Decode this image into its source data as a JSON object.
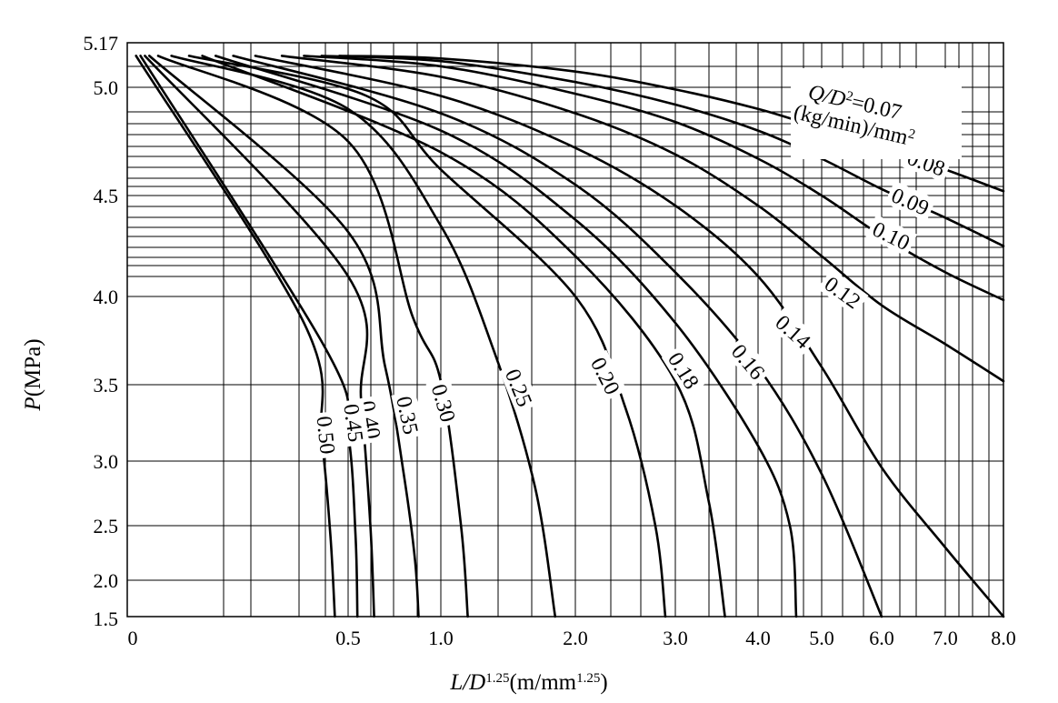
{
  "chart_data": {
    "type": "line",
    "xlabel": {
      "italic": "L/D",
      "sup": "1.25",
      "unit": "(m/mm",
      "unit_sup": "1.25",
      "close": ")"
    },
    "ylabel": {
      "italic": "P",
      "unit": "(MPa)"
    },
    "x_ticks": [
      {
        "label": "0",
        "value": 0
      },
      {
        "label": "0.5",
        "value": 0.5
      },
      {
        "label": "1.0",
        "value": 1.0
      },
      {
        "label": "2.0",
        "value": 2.0
      },
      {
        "label": "3.0",
        "value": 3.0
      },
      {
        "label": "4.0",
        "value": 4.0
      },
      {
        "label": "5.0",
        "value": 5.0
      },
      {
        "label": "6.0",
        "value": 6.0
      },
      {
        "label": "7.0",
        "value": 7.0
      },
      {
        "label": "8.0",
        "value": 8.0
      }
    ],
    "y_ticks": [
      {
        "label": "5.17",
        "value": 5.17
      },
      {
        "label": "5.0",
        "value": 5.0
      },
      {
        "label": "4.5",
        "value": 4.5
      },
      {
        "label": "4.0",
        "value": 4.0
      },
      {
        "label": "3.5",
        "value": 3.5
      },
      {
        "label": "3.0",
        "value": 3.0
      },
      {
        "label": "2.5",
        "value": 2.5
      },
      {
        "label": "2.0",
        "value": 2.0
      },
      {
        "label": "1.5",
        "value": 1.5
      }
    ],
    "xlim": [
      0,
      8.0
    ],
    "ylim": [
      1.5,
      5.17
    ],
    "grid": true,
    "legend_note": {
      "q_italic": "Q/D",
      "q_sup": "2",
      "q_eq": "=0.07",
      "unit": "(kg/min)/mm",
      "unit_sup": "2"
    },
    "series": [
      {
        "name": "0.07",
        "points": [
          [
            0.48,
            5.12
          ],
          [
            1.0,
            5.11
          ],
          [
            2.0,
            5.06
          ],
          [
            3.0,
            4.99
          ],
          [
            4.0,
            4.9
          ],
          [
            5.0,
            4.81
          ],
          [
            6.0,
            4.72
          ],
          [
            7.0,
            4.62
          ],
          [
            8.0,
            4.52
          ]
        ]
      },
      {
        "name": "0.08",
        "points": [
          [
            0.44,
            5.12
          ],
          [
            1.0,
            5.1
          ],
          [
            2.0,
            5.02
          ],
          [
            3.0,
            4.92
          ],
          [
            4.0,
            4.8
          ],
          [
            5.0,
            4.67
          ],
          [
            6.0,
            4.53
          ],
          [
            7.0,
            4.39
          ],
          [
            8.0,
            4.25
          ]
        ]
      },
      {
        "name": "0.09",
        "points": [
          [
            0.4,
            5.12
          ],
          [
            1.0,
            5.08
          ],
          [
            2.0,
            4.97
          ],
          [
            3.0,
            4.84
          ],
          [
            4.0,
            4.67
          ],
          [
            5.0,
            4.5
          ],
          [
            6.0,
            4.3
          ],
          [
            7.0,
            4.12
          ],
          [
            8.0,
            3.98
          ]
        ]
      },
      {
        "name": "0.10",
        "points": [
          [
            0.35,
            5.12
          ],
          [
            1.0,
            5.04
          ],
          [
            2.0,
            4.88
          ],
          [
            3.0,
            4.69
          ],
          [
            4.0,
            4.45
          ],
          [
            5.0,
            4.2
          ],
          [
            6.0,
            3.95
          ],
          [
            7.0,
            3.73
          ],
          [
            8.0,
            3.52
          ]
        ]
      },
      {
        "name": "0.12",
        "points": [
          [
            0.29,
            5.12
          ],
          [
            1.0,
            4.96
          ],
          [
            2.0,
            4.72
          ],
          [
            3.0,
            4.45
          ],
          [
            4.0,
            4.1
          ],
          [
            5.0,
            3.6
          ],
          [
            6.0,
            2.95
          ],
          [
            7.0,
            2.3
          ],
          [
            8.0,
            1.5
          ]
        ]
      },
      {
        "name": "0.14",
        "points": [
          [
            0.24,
            5.12
          ],
          [
            1.0,
            4.88
          ],
          [
            2.0,
            4.55
          ],
          [
            3.0,
            4.12
          ],
          [
            4.0,
            3.6
          ],
          [
            5.0,
            2.9
          ],
          [
            6.0,
            1.5
          ]
        ]
      },
      {
        "name": "0.16",
        "points": [
          [
            0.2,
            5.12
          ],
          [
            1.0,
            4.8
          ],
          [
            2.0,
            4.38
          ],
          [
            3.0,
            3.85
          ],
          [
            4.0,
            3.1
          ],
          [
            4.5,
            2.5
          ],
          [
            4.6,
            1.5
          ]
        ]
      },
      {
        "name": "0.18",
        "points": [
          [
            0.17,
            5.12
          ],
          [
            1.0,
            4.7
          ],
          [
            2.0,
            4.2
          ],
          [
            3.0,
            3.52
          ],
          [
            3.4,
            2.7
          ],
          [
            3.6,
            1.5
          ]
        ]
      },
      {
        "name": "0.20",
        "points": [
          [
            0.14,
            5.12
          ],
          [
            0.6,
            4.96
          ],
          [
            1.0,
            4.62
          ],
          [
            2.0,
            4.0
          ],
          [
            2.5,
            3.35
          ],
          [
            2.8,
            2.5
          ],
          [
            2.9,
            1.5
          ]
        ]
      },
      {
        "name": "0.25",
        "points": [
          [
            0.1,
            5.12
          ],
          [
            0.5,
            4.9
          ],
          [
            1.0,
            4.35
          ],
          [
            1.4,
            3.68
          ],
          [
            1.7,
            2.8
          ],
          [
            1.85,
            1.5
          ]
        ]
      },
      {
        "name": "0.30",
        "points": [
          [
            0.07,
            5.12
          ],
          [
            0.5,
            4.75
          ],
          [
            0.85,
            3.88
          ],
          [
            1.0,
            3.52
          ],
          [
            1.15,
            2.5
          ],
          [
            1.2,
            1.5
          ]
        ]
      },
      {
        "name": "0.35",
        "points": [
          [
            0.05,
            5.12
          ],
          [
            0.5,
            4.32
          ],
          [
            0.7,
            3.6
          ],
          [
            0.8,
            2.9
          ],
          [
            0.86,
            2.2
          ],
          [
            0.88,
            1.5
          ]
        ]
      },
      {
        "name": "0.40",
        "points": [
          [
            0.04,
            5.12
          ],
          [
            0.5,
            4.1
          ],
          [
            0.57,
            3.4
          ],
          [
            0.62,
            2.5
          ],
          [
            0.64,
            1.5
          ]
        ]
      },
      {
        "name": "0.45",
        "points": [
          [
            0.03,
            5.12
          ],
          [
            0.45,
            3.7
          ],
          [
            0.5,
            3.18
          ],
          [
            0.54,
            2.4
          ],
          [
            0.55,
            1.5
          ]
        ]
      },
      {
        "name": "0.50",
        "points": [
          [
            0.02,
            5.12
          ],
          [
            0.4,
            3.85
          ],
          [
            0.44,
            3.15
          ],
          [
            0.46,
            2.4
          ],
          [
            0.47,
            1.5
          ]
        ]
      }
    ],
    "curve_labels": [
      {
        "text": "0.08",
        "at": [
          6.7,
          4.65
        ]
      },
      {
        "text": "0.09",
        "at": [
          6.45,
          4.47
        ]
      },
      {
        "text": "0.10",
        "at": [
          6.15,
          4.3
        ]
      },
      {
        "text": "0.12",
        "at": [
          5.35,
          4.02
        ]
      },
      {
        "text": "0.14",
        "at": [
          4.55,
          3.8
        ]
      },
      {
        "text": "0.16",
        "at": [
          3.88,
          3.63
        ]
      },
      {
        "text": "0.18",
        "at": [
          3.1,
          3.58
        ]
      },
      {
        "text": "0.20",
        "at": [
          2.3,
          3.55
        ]
      },
      {
        "text": "0.25",
        "at": [
          1.58,
          3.48
        ]
      },
      {
        "text": "0.30",
        "at": [
          1.02,
          3.38
        ]
      },
      {
        "text": "0.35",
        "at": [
          0.82,
          3.3
        ]
      },
      {
        "text": "0.40",
        "at": [
          0.62,
          3.27
        ]
      },
      {
        "text": "0.45",
        "at": [
          0.53,
          3.25
        ]
      },
      {
        "text": "0.50",
        "at": [
          0.45,
          3.17
        ]
      }
    ]
  }
}
